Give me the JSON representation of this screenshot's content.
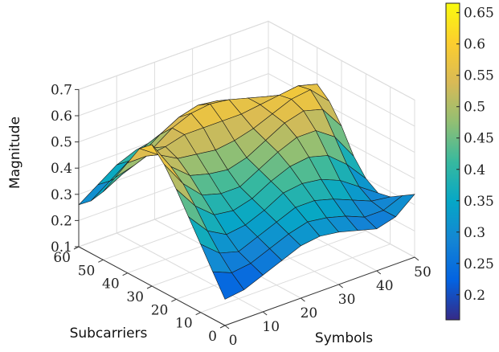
{
  "chart_data": {
    "type": "surface",
    "title": "",
    "xlabel": "Symbols",
    "ylabel": "Subcarriers",
    "zlabel": "Magnitude",
    "xlim": [
      0,
      50
    ],
    "ylim": [
      0,
      60
    ],
    "zlim": [
      0.1,
      0.7
    ],
    "x_ticks": [
      "0",
      "10",
      "20",
      "30",
      "40",
      "50"
    ],
    "y_ticks": [
      "0",
      "10",
      "20",
      "30",
      "40",
      "50",
      "60"
    ],
    "z_ticks": [
      "0.1",
      "0.2",
      "0.3",
      "0.4",
      "0.5",
      "0.6",
      "0.7"
    ],
    "colorbar": {
      "min": 0.16,
      "max": 0.665,
      "ticks": [
        "0.2",
        "0.25",
        "0.3",
        "0.35",
        "0.4",
        "0.45",
        "0.5",
        "0.55",
        "0.6",
        "0.65"
      ]
    },
    "colormap": "parula",
    "grid": true,
    "x_grid": [
      0,
      5,
      10,
      15,
      20,
      25,
      30,
      35,
      40,
      45,
      50
    ],
    "y_grid": [
      0,
      5,
      10,
      15,
      20,
      25,
      30,
      35,
      40,
      45,
      50,
      55,
      60
    ],
    "z_values": [
      [
        0.2,
        0.28,
        0.36,
        0.44,
        0.52,
        0.59,
        0.64,
        0.6,
        0.52,
        0.44,
        0.36,
        0.3,
        0.26
      ],
      [
        0.21,
        0.25,
        0.3,
        0.36,
        0.43,
        0.49,
        0.53,
        0.55,
        0.52,
        0.46,
        0.4,
        0.35,
        0.31
      ],
      [
        0.24,
        0.26,
        0.28,
        0.32,
        0.37,
        0.42,
        0.47,
        0.51,
        0.53,
        0.5,
        0.45,
        0.4,
        0.36
      ],
      [
        0.27,
        0.29,
        0.31,
        0.33,
        0.36,
        0.4,
        0.45,
        0.5,
        0.55,
        0.55,
        0.5,
        0.44,
        0.39
      ],
      [
        0.3,
        0.32,
        0.34,
        0.36,
        0.38,
        0.4,
        0.44,
        0.49,
        0.55,
        0.58,
        0.54,
        0.47,
        0.4
      ],
      [
        0.31,
        0.34,
        0.37,
        0.4,
        0.42,
        0.44,
        0.46,
        0.5,
        0.55,
        0.59,
        0.56,
        0.48,
        0.4
      ],
      [
        0.3,
        0.33,
        0.37,
        0.41,
        0.45,
        0.48,
        0.5,
        0.52,
        0.55,
        0.58,
        0.55,
        0.47,
        0.38
      ],
      [
        0.28,
        0.31,
        0.35,
        0.4,
        0.46,
        0.51,
        0.54,
        0.55,
        0.56,
        0.56,
        0.52,
        0.44,
        0.35
      ],
      [
        0.26,
        0.28,
        0.32,
        0.37,
        0.44,
        0.51,
        0.56,
        0.58,
        0.57,
        0.54,
        0.48,
        0.4,
        0.32
      ],
      [
        0.28,
        0.28,
        0.29,
        0.32,
        0.38,
        0.46,
        0.54,
        0.59,
        0.58,
        0.52,
        0.44,
        0.36,
        0.29
      ],
      [
        0.34,
        0.31,
        0.28,
        0.27,
        0.3,
        0.36,
        0.45,
        0.52,
        0.56,
        0.5,
        0.4,
        0.32,
        0.26
      ]
    ]
  }
}
